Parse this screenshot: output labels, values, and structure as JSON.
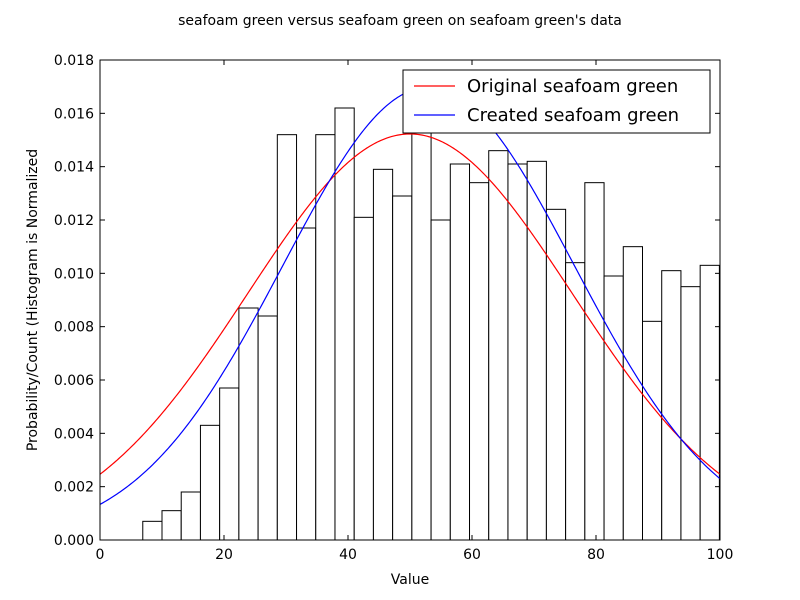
{
  "chart_data": {
    "type": "histogram",
    "title": "seafoam green versus seafoam green on seafoam green's data",
    "xlabel": "Value",
    "ylabel": "Probability/Count (Histogram is Normalized",
    "xlim": [
      0,
      100
    ],
    "ylim": [
      0,
      0.018
    ],
    "x_ticks": [
      0,
      20,
      40,
      60,
      80,
      100
    ],
    "x_tick_labels": [
      "0",
      "20",
      "40",
      "60",
      "80",
      "100"
    ],
    "y_ticks": [
      0,
      0.002,
      0.004,
      0.006,
      0.008,
      0.01,
      0.012,
      0.014,
      0.016,
      0.018
    ],
    "y_tick_labels": [
      "0.000",
      "0.002",
      "0.004",
      "0.006",
      "0.008",
      "0.010",
      "0.012",
      "0.014",
      "0.016",
      "0.018"
    ],
    "grid": false,
    "legend_position": "top-right",
    "histogram": {
      "bin_edges": [
        6.9,
        10.0,
        13.1,
        16.2,
        19.3,
        22.4,
        25.5,
        28.6,
        31.7,
        34.8,
        37.9,
        41.0,
        44.1,
        47.2,
        50.3,
        53.4,
        56.5,
        59.6,
        62.7,
        65.8,
        68.9,
        72.0,
        75.1,
        78.2,
        81.3,
        84.4,
        87.5,
        90.6,
        93.7,
        96.8,
        99.9
      ],
      "values": [
        0.0007,
        0.0011,
        0.0018,
        0.0043,
        0.0057,
        0.0087,
        0.0084,
        0.0152,
        0.0117,
        0.0152,
        0.0162,
        0.0121,
        0.0139,
        0.0129,
        0.0156,
        0.012,
        0.0141,
        0.0134,
        0.0146,
        0.0141,
        0.0142,
        0.0124,
        0.0104,
        0.0134,
        0.0099,
        0.011,
        0.0082,
        0.0101,
        0.0095,
        0.0103
      ],
      "edge_color": "#000000",
      "fill_color": "#ffffff"
    },
    "series": [
      {
        "name": "Original seafoam green",
        "type": "line",
        "color": "#ff0000",
        "curve": "normal_pdf",
        "mean": 50.0,
        "std": 26.2
      },
      {
        "name": "Created seafoam green",
        "type": "line",
        "color": "#0000ff",
        "curve": "normal_pdf",
        "mean": 53.0,
        "std": 23.5
      }
    ]
  }
}
